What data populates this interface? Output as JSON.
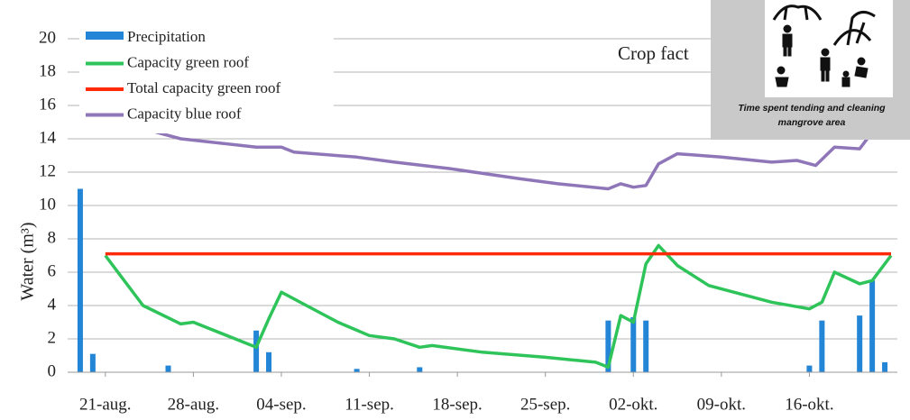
{
  "chart_data": {
    "type": "combo",
    "ylabel": "Water (m³)",
    "annotation": "Crop fact",
    "ylim": [
      0,
      20
    ],
    "yticks": [
      0,
      2,
      4,
      6,
      8,
      10,
      12,
      14,
      16,
      18,
      20
    ],
    "xlim": [
      -3,
      63
    ],
    "xticks": [
      {
        "value": 0,
        "label": "21-aug."
      },
      {
        "value": 7,
        "label": "28-aug."
      },
      {
        "value": 14,
        "label": "04-sep."
      },
      {
        "value": 21,
        "label": "11-sep."
      },
      {
        "value": 28,
        "label": "18-sep."
      },
      {
        "value": 35,
        "label": "25-sep."
      },
      {
        "value": 42,
        "label": "02-okt."
      },
      {
        "value": 49,
        "label": "09-okt."
      },
      {
        "value": 56,
        "label": "16-okt."
      }
    ],
    "grid": true,
    "legend": "upper left",
    "series": [
      {
        "name": "Precipitation",
        "type": "bar",
        "color": "#2385d6",
        "x": [
          -2,
          -1,
          5,
          12,
          13,
          20,
          25,
          40,
          42,
          43,
          56,
          57,
          60,
          61,
          62
        ],
        "values": [
          11.0,
          1.1,
          0.4,
          2.5,
          1.2,
          0.2,
          0.3,
          3.1,
          3.3,
          3.1,
          0.4,
          3.1,
          3.4,
          5.5,
          0.6
        ]
      },
      {
        "name": "Capacity green roof",
        "type": "line",
        "color": "#2ec45a",
        "x": [
          0,
          3,
          6,
          7,
          12,
          13,
          14,
          16,
          18.5,
          21,
          23,
          25,
          26,
          30,
          35,
          39,
          40,
          41,
          42,
          43,
          44,
          45.5,
          48,
          53,
          56,
          57,
          58,
          60,
          61,
          62.5
        ],
        "values": [
          7.0,
          4.0,
          2.9,
          3.0,
          1.5,
          3.2,
          4.8,
          4.0,
          3.0,
          2.2,
          2.0,
          1.5,
          1.6,
          1.2,
          0.9,
          0.6,
          0.3,
          3.4,
          3.0,
          6.5,
          7.6,
          6.4,
          5.2,
          4.2,
          3.8,
          4.2,
          6.0,
          5.3,
          5.5,
          7.0
        ]
      },
      {
        "name": "Total capacity green roof",
        "type": "line",
        "color": "#ff2a0a",
        "x": [
          0,
          62.5
        ],
        "values": [
          7.1,
          7.1
        ]
      },
      {
        "name": "Capacity blue roof",
        "type": "line",
        "color": "#8f76b8",
        "x": [
          4,
          6,
          12,
          14,
          15,
          20,
          23,
          27.5,
          33,
          36,
          40,
          41,
          42,
          43,
          44,
          45.5,
          49,
          53,
          55,
          56.5,
          58,
          60,
          61
        ],
        "values": [
          14.4,
          14.0,
          13.5,
          13.5,
          13.2,
          12.9,
          12.6,
          12.2,
          11.6,
          11.3,
          11.0,
          11.3,
          11.1,
          11.2,
          12.5,
          13.1,
          12.9,
          12.6,
          12.7,
          12.4,
          13.5,
          13.4,
          14.4
        ]
      }
    ]
  },
  "overlay": {
    "caption": [
      "Time spent tending and cleaning",
      "mangrove area"
    ]
  }
}
